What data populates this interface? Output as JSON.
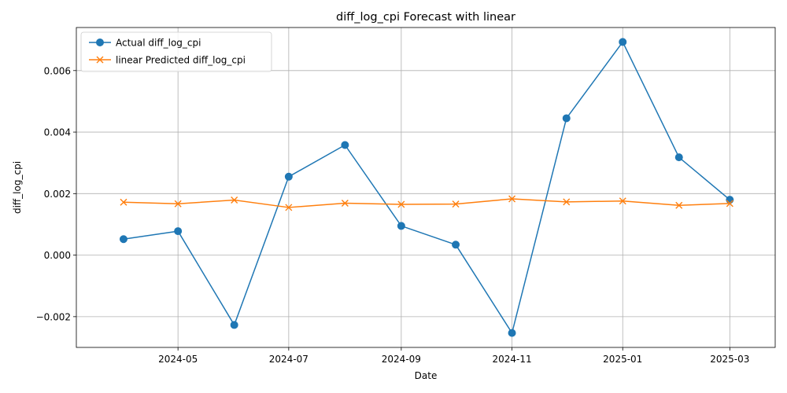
{
  "chart_data": {
    "type": "line",
    "title": "diff_log_cpi Forecast with linear",
    "xlabel": "Date",
    "ylabel": "diff_log_cpi",
    "x": [
      "2024-04-01",
      "2024-05-01",
      "2024-06-01",
      "2024-07-01",
      "2024-08-01",
      "2024-09-01",
      "2024-10-01",
      "2024-11-01",
      "2024-12-01",
      "2025-01-01",
      "2025-02-01",
      "2025-03-01"
    ],
    "xlim": [
      "2024-03-06",
      "2025-03-26"
    ],
    "ylim": [
      -0.003,
      0.0074
    ],
    "xticks": [
      "2024-05-01",
      "2024-07-01",
      "2024-09-01",
      "2024-11-01",
      "2025-01-01",
      "2025-03-01"
    ],
    "xtick_labels": [
      "2024-05",
      "2024-07",
      "2024-09",
      "2024-11",
      "2025-01",
      "2025-03"
    ],
    "yticks": [
      -0.002,
      0.0,
      0.002,
      0.004,
      0.006
    ],
    "ytick_labels": [
      "−0.002",
      "0.000",
      "0.002",
      "0.004",
      "0.006"
    ],
    "grid": true,
    "legend_position": "upper left",
    "series": [
      {
        "name": "Actual diff_log_cpi",
        "color": "#1f77b4",
        "marker": "circle",
        "values": [
          0.00052,
          0.00078,
          -0.00227,
          0.00255,
          0.00358,
          0.00095,
          0.00034,
          -0.00253,
          0.00445,
          0.00693,
          0.00318,
          0.0018
        ]
      },
      {
        "name": "linear Predicted diff_log_cpi",
        "color": "#ff7f0e",
        "marker": "x",
        "values": [
          0.00172,
          0.00167,
          0.00179,
          0.00155,
          0.00169,
          0.00165,
          0.00166,
          0.00183,
          0.00173,
          0.00176,
          0.00162,
          0.00168
        ]
      }
    ]
  }
}
